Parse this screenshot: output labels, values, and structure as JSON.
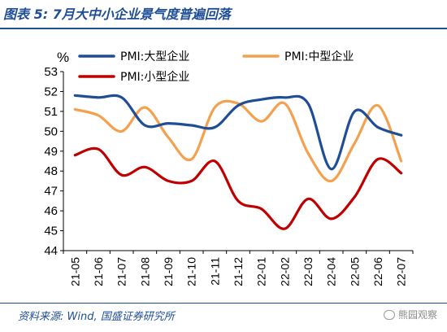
{
  "header": {
    "title": "图表 5:  7月大中小企业景气度普遍回落"
  },
  "footer": {
    "source": "资料来源:  Wind,  国盛证券研究所",
    "watermark": "熊园观察"
  },
  "colors": {
    "series": [
      "#1f4e96",
      "#f4a14f",
      "#c00000"
    ],
    "accent": "#1f4e96"
  },
  "chart_data": {
    "type": "line",
    "title": "",
    "xlabel": "",
    "ylabel": "%",
    "ylim": [
      44,
      53
    ],
    "yticks": [
      44,
      45,
      46,
      47,
      48,
      49,
      50,
      51,
      52,
      53
    ],
    "grid": false,
    "legend_position": "top",
    "categories": [
      "21-05",
      "21-06",
      "21-07",
      "21-08",
      "21-09",
      "21-10",
      "21-11",
      "21-12",
      "22-01",
      "22-02",
      "22-03",
      "22-04",
      "22-05",
      "22-06",
      "22-07"
    ],
    "series": [
      {
        "name": "PMI:大型企业",
        "values": [
          51.8,
          51.7,
          51.7,
          50.3,
          50.4,
          50.3,
          50.2,
          51.3,
          51.6,
          51.7,
          51.4,
          48.1,
          51.0,
          50.2,
          49.8
        ]
      },
      {
        "name": "PMI:中型企业",
        "values": [
          51.1,
          50.8,
          50.0,
          51.2,
          49.7,
          48.6,
          51.2,
          51.4,
          50.5,
          51.4,
          48.9,
          47.5,
          49.4,
          51.3,
          48.5
        ]
      },
      {
        "name": "PMI:小型企业",
        "values": [
          48.8,
          49.1,
          47.8,
          48.2,
          47.5,
          47.5,
          48.5,
          46.5,
          46.1,
          45.1,
          46.6,
          45.6,
          46.7,
          48.6,
          47.9
        ]
      }
    ]
  }
}
